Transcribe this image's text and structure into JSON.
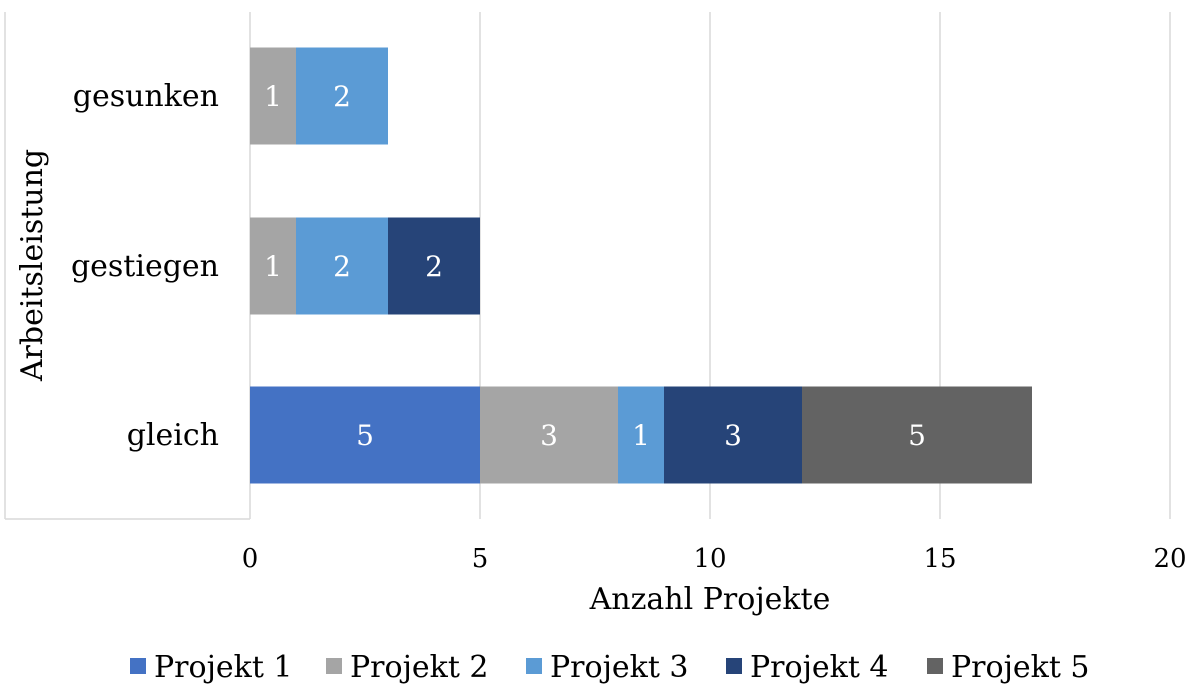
{
  "chart_data": {
    "type": "bar",
    "orientation": "horizontal",
    "stacked": true,
    "title": "",
    "xlabel": "Anzahl Projekte",
    "ylabel": "Arbeitsleistung",
    "xlim": [
      0,
      20
    ],
    "xticks": [
      0,
      5,
      10,
      15,
      20
    ],
    "grid": true,
    "legend_position": "bottom",
    "categories": [
      "gesunken",
      "gestiegen",
      "gleich"
    ],
    "series": [
      {
        "name": "Projekt 1",
        "color": "#4472C4",
        "label_color": "#ffffff",
        "values": [
          0,
          0,
          5
        ]
      },
      {
        "name": "Projekt 2",
        "color": "#A5A5A5",
        "label_color": "#ffffff",
        "values": [
          1,
          1,
          3
        ]
      },
      {
        "name": "Projekt 3",
        "color": "#5B9BD5",
        "label_color": "#ffffff",
        "values": [
          2,
          2,
          1
        ]
      },
      {
        "name": "Projekt 4",
        "color": "#264478",
        "label_color": "#ffffff",
        "values": [
          0,
          2,
          3
        ]
      },
      {
        "name": "Projekt 5",
        "color": "#636363",
        "label_color": "#ffffff",
        "values": [
          0,
          0,
          5
        ]
      }
    ]
  }
}
